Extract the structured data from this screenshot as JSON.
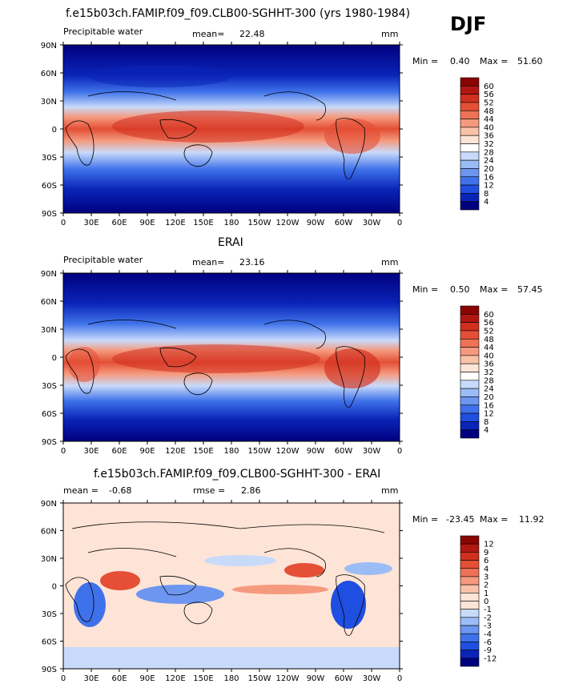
{
  "season": "DJF",
  "colors": {
    "abs_scale": [
      "#00007f",
      "#0a24b8",
      "#1f4fe0",
      "#3f72ea",
      "#6c96f0",
      "#9cbcf5",
      "#c8dafa",
      "#ffffff",
      "#fde4d6",
      "#f9c1a8",
      "#f59a7e",
      "#ee7356",
      "#e44f36",
      "#d1301f",
      "#b11712",
      "#8a0404"
    ],
    "diff_scale": [
      "#00007f",
      "#0a24b8",
      "#1f4fe0",
      "#3f72ea",
      "#6c96f0",
      "#9cbcf5",
      "#c8dafa",
      "#fde4d6",
      "#f9c1a8",
      "#f59a7e",
      "#ee7356",
      "#e44f36",
      "#d1301f",
      "#b11712",
      "#8a0404"
    ]
  },
  "panels": [
    {
      "title": "f.e15b03ch.FAMIP.f09_f09.CLB00-SGHHT-300 (yrs 1980-1984)",
      "variable": "Precipitable water",
      "stat_label": "mean=",
      "stat_value": "22.48",
      "units": "mm",
      "min_label": "Min =",
      "min_value": "0.40",
      "max_label": "Max =",
      "max_value": "51.60",
      "legend_levels": [
        "60",
        "56",
        "52",
        "48",
        "44",
        "40",
        "36",
        "32",
        "28",
        "24",
        "20",
        "16",
        "12",
        "8",
        "4"
      ]
    },
    {
      "title": "ERAI",
      "variable": "Precipitable water",
      "stat_label": "mean=",
      "stat_value": "23.16",
      "units": "mm",
      "min_label": "Min =",
      "min_value": "0.50",
      "max_label": "Max =",
      "max_value": "57.45",
      "legend_levels": [
        "60",
        "56",
        "52",
        "48",
        "44",
        "40",
        "36",
        "32",
        "28",
        "24",
        "20",
        "16",
        "12",
        "8",
        "4"
      ]
    },
    {
      "title": "f.e15b03ch.FAMIP.f09_f09.CLB00-SGHHT-300 - ERAI",
      "mean_label": "mean =",
      "mean_value": "-0.68",
      "rmse_label": "rmse =",
      "rmse_value": "2.86",
      "units": "mm",
      "min_label": "Min =",
      "min_value": "-23.45",
      "max_label": "Max =",
      "max_value": "11.92",
      "legend_levels": [
        "12",
        "9",
        "6",
        "4",
        "3",
        "2",
        "1",
        "0",
        "-1",
        "-2",
        "-3",
        "-4",
        "-6",
        "-9",
        "-12"
      ]
    }
  ],
  "lat_labels": [
    "90N",
    "60N",
    "30N",
    "0",
    "30S",
    "60S",
    "90S"
  ],
  "lon_labels": [
    "0",
    "30E",
    "60E",
    "90E",
    "120E",
    "150E",
    "180",
    "150W",
    "120W",
    "90W",
    "60W",
    "30W",
    "0"
  ]
}
